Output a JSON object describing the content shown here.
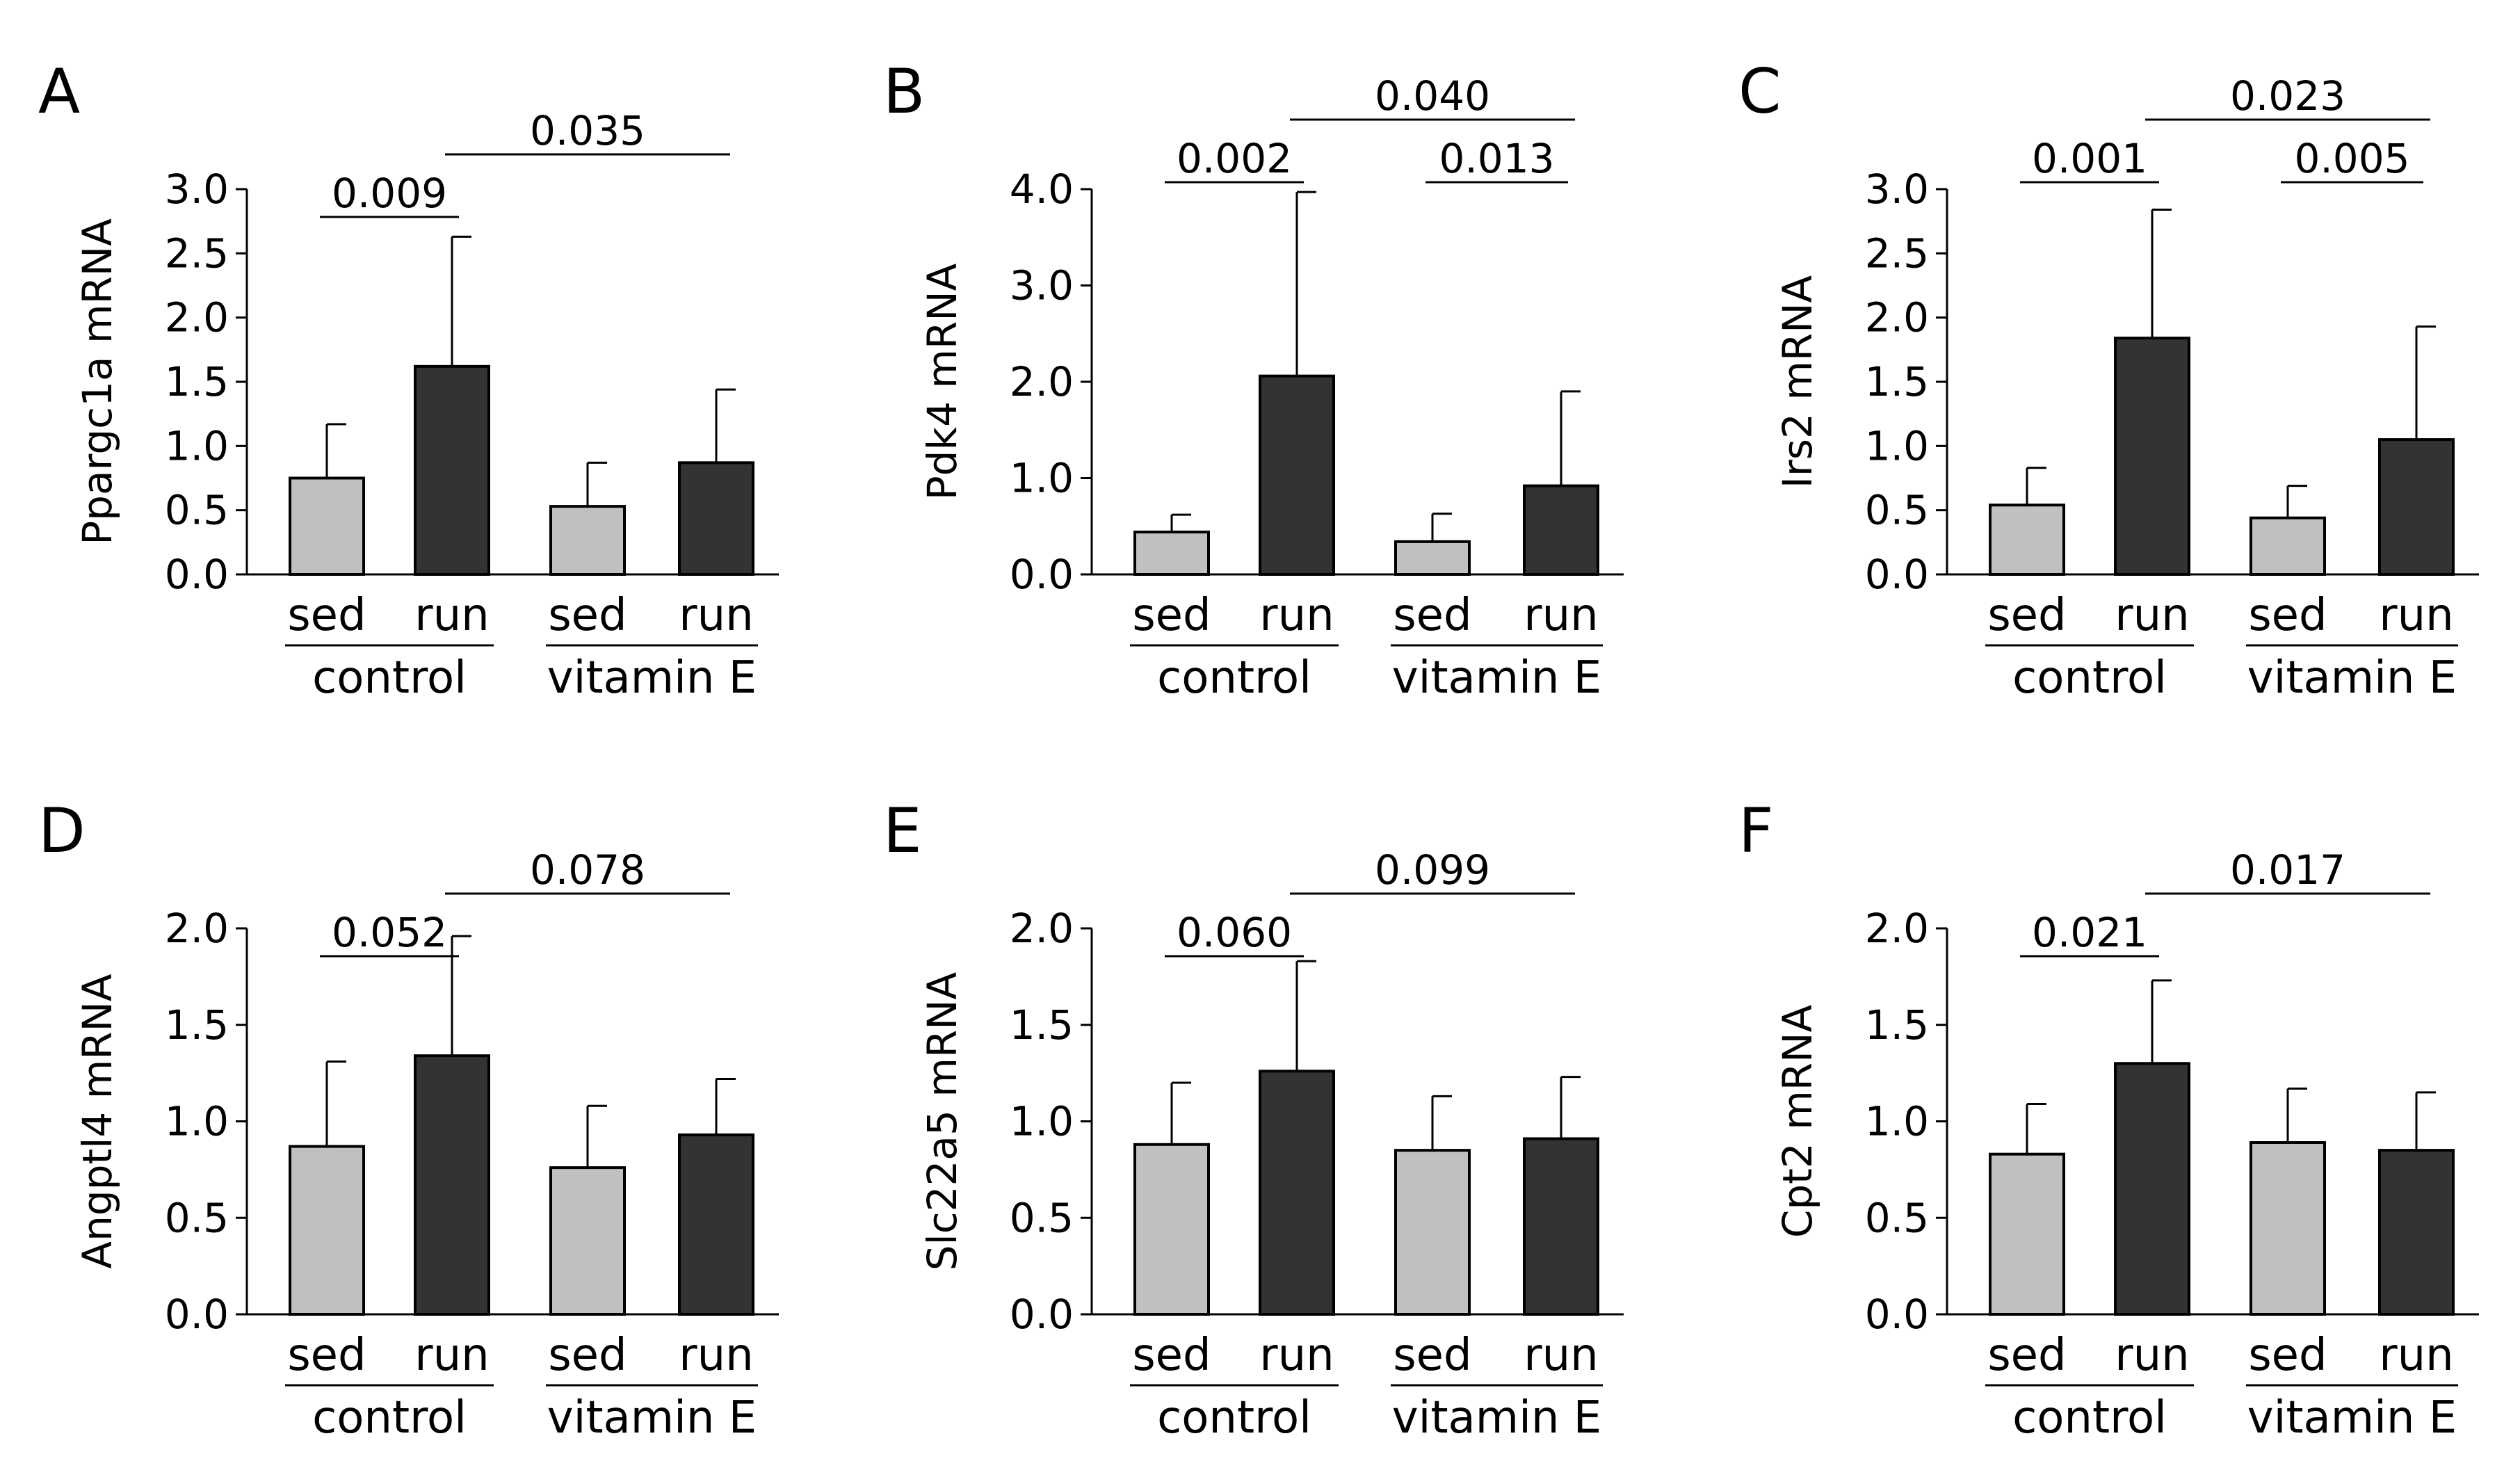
{
  "chart_data": [
    {
      "panel": "A",
      "type": "bar",
      "ylabel": "Ppargc1a mRNA",
      "ylim": [
        0,
        3.0
      ],
      "yticks": [
        "0.0",
        "0.5",
        "1.0",
        "1.5",
        "2.0",
        "2.5",
        "3.0"
      ],
      "ytick_values": [
        0,
        0.5,
        1,
        1.5,
        2,
        2.5,
        3
      ],
      "categories": [
        "sed",
        "run",
        "sed",
        "run"
      ],
      "groups": [
        "control",
        "vitamin E"
      ],
      "values": [
        0.75,
        1.62,
        0.53,
        0.87
      ],
      "errors": [
        0.42,
        1.01,
        0.34,
        0.57
      ],
      "brackets": [
        {
          "from": 0,
          "to": 1,
          "label": "0.009",
          "level": 1
        },
        {
          "from": 1,
          "to": 3,
          "label": "0.035",
          "level": 2
        }
      ]
    },
    {
      "panel": "B",
      "type": "bar",
      "ylabel": "Pdk4 mRNA",
      "ylim": [
        0,
        4.0
      ],
      "yticks": [
        "0.0",
        "1.0",
        "2.0",
        "3.0",
        "4.0"
      ],
      "ytick_values": [
        0,
        1,
        2,
        3,
        4
      ],
      "categories": [
        "sed",
        "run",
        "sed",
        "run"
      ],
      "groups": [
        "control",
        "vitamin E"
      ],
      "values": [
        0.44,
        2.06,
        0.34,
        0.92
      ],
      "errors": [
        0.18,
        1.91,
        0.29,
        0.98
      ],
      "brackets": [
        {
          "from": 0,
          "to": 1,
          "label": "0.002",
          "level": 1
        },
        {
          "from": 2,
          "to": 3,
          "label": "0.013",
          "level": 1
        },
        {
          "from": 1,
          "to": 3,
          "label": "0.040",
          "level": 2
        }
      ]
    },
    {
      "panel": "C",
      "type": "bar",
      "ylabel": "Irs2 mRNA",
      "ylim": [
        0,
        3.0
      ],
      "yticks": [
        "0.0",
        "0.5",
        "1.0",
        "1.5",
        "2.0",
        "2.5",
        "3.0"
      ],
      "ytick_values": [
        0,
        0.5,
        1,
        1.5,
        2,
        2.5,
        3
      ],
      "categories": [
        "sed",
        "run",
        "sed",
        "run"
      ],
      "groups": [
        "control",
        "vitamin E"
      ],
      "values": [
        0.54,
        1.84,
        0.44,
        1.05
      ],
      "errors": [
        0.29,
        1.0,
        0.25,
        0.88
      ],
      "brackets": [
        {
          "from": 0,
          "to": 1,
          "label": "0.001",
          "level": 1
        },
        {
          "from": 2,
          "to": 3,
          "label": "0.005",
          "level": 1
        },
        {
          "from": 1,
          "to": 3,
          "label": "0.023",
          "level": 2
        }
      ]
    },
    {
      "panel": "D",
      "type": "bar",
      "ylabel": "Angptl4 mRNA",
      "ylim": [
        0,
        2.0
      ],
      "yticks": [
        "0.0",
        "0.5",
        "1.0",
        "1.5",
        "2.0"
      ],
      "ytick_values": [
        0,
        0.5,
        1,
        1.5,
        2
      ],
      "categories": [
        "sed",
        "run",
        "sed",
        "run"
      ],
      "groups": [
        "control",
        "vitamin E"
      ],
      "values": [
        0.87,
        1.34,
        0.76,
        0.93
      ],
      "errors": [
        0.44,
        0.62,
        0.32,
        0.29
      ],
      "brackets": [
        {
          "from": 0,
          "to": 1,
          "label": "0.052",
          "level": 1
        },
        {
          "from": 1,
          "to": 3,
          "label": "0.078",
          "level": 2
        }
      ]
    },
    {
      "panel": "E",
      "type": "bar",
      "ylabel": "Slc22a5 mRNA",
      "ylim": [
        0,
        2.0
      ],
      "yticks": [
        "0.0",
        "0.5",
        "1.0",
        "1.5",
        "2.0"
      ],
      "ytick_values": [
        0,
        0.5,
        1,
        1.5,
        2
      ],
      "categories": [
        "sed",
        "run",
        "sed",
        "run"
      ],
      "groups": [
        "control",
        "vitamin E"
      ],
      "values": [
        0.88,
        1.26,
        0.85,
        0.91
      ],
      "errors": [
        0.32,
        0.57,
        0.28,
        0.32
      ],
      "brackets": [
        {
          "from": 0,
          "to": 1,
          "label": "0.060",
          "level": 1
        },
        {
          "from": 1,
          "to": 3,
          "label": "0.099",
          "level": 2
        }
      ]
    },
    {
      "panel": "F",
      "type": "bar",
      "ylabel": "Cpt2 mRNA",
      "ylim": [
        0,
        2.0
      ],
      "yticks": [
        "0.0",
        "0.5",
        "1.0",
        "1.5",
        "2.0"
      ],
      "ytick_values": [
        0,
        0.5,
        1,
        1.5,
        2
      ],
      "categories": [
        "sed",
        "run",
        "sed",
        "run"
      ],
      "groups": [
        "control",
        "vitamin E"
      ],
      "values": [
        0.83,
        1.3,
        0.89,
        0.85
      ],
      "errors": [
        0.26,
        0.43,
        0.28,
        0.3
      ],
      "brackets": [
        {
          "from": 0,
          "to": 1,
          "label": "0.021",
          "level": 1
        },
        {
          "from": 1,
          "to": 3,
          "label": "0.017",
          "level": 2
        }
      ]
    }
  ],
  "colors": {
    "sed": "#c0c0c0",
    "run": "#333333",
    "line": "#000000"
  }
}
